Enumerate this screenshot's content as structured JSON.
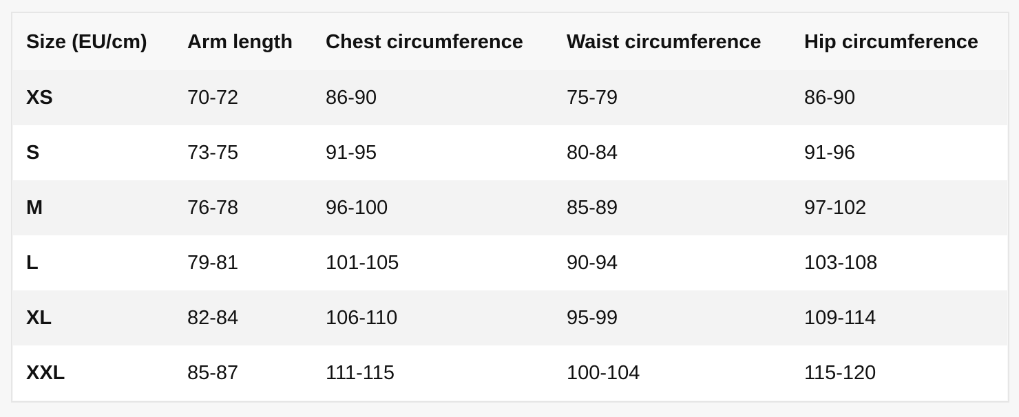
{
  "table": {
    "headers": [
      "Size (EU/cm)",
      "Arm length",
      "Chest circumference",
      "Waist circumference",
      "Hip circumference"
    ],
    "rows": [
      [
        "XS",
        "70-72",
        "86-90",
        "75-79",
        "86-90"
      ],
      [
        "S",
        "73-75",
        "91-95",
        "80-84",
        "91-96"
      ],
      [
        "M",
        "76-78",
        "96-100",
        "85-89",
        "97-102"
      ],
      [
        "L",
        "79-81",
        "101-105",
        "90-94",
        "103-108"
      ],
      [
        "XL",
        "82-84",
        "106-110",
        "95-99",
        "109-114"
      ],
      [
        "XXL",
        "85-87",
        "111-115",
        "100-104",
        "115-120"
      ]
    ]
  }
}
